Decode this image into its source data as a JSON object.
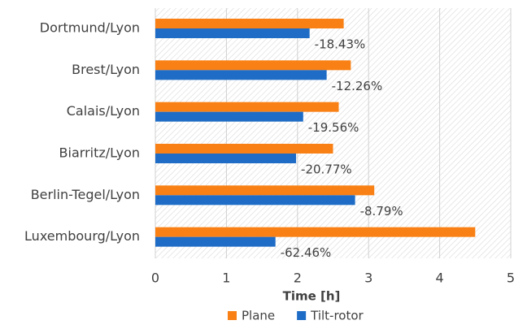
{
  "chart_data": {
    "type": "hbar",
    "categories": [
      "Dortmund/Lyon",
      "Brest/Lyon",
      "Calais/Lyon",
      "Biarritz/Lyon",
      "Berlin-Tegel/Lyon",
      "Luxembourg/Lyon"
    ],
    "series": [
      {
        "name": "Plane",
        "color": "#f98014",
        "values": [
          2.65,
          2.75,
          2.58,
          2.5,
          3.08,
          4.5
        ]
      },
      {
        "name": "Tilt-rotor",
        "color": "#1e6cc6",
        "values": [
          2.17,
          2.41,
          2.08,
          1.98,
          2.81,
          1.69
        ]
      }
    ],
    "change_labels": [
      "-18.43%",
      "-12.26%",
      "-19.56%",
      "-20.77%",
      "-8.79%",
      "-62.46%"
    ],
    "x_label": "Time [h]",
    "xlim": [
      0,
      5
    ],
    "xticks": [
      0,
      1,
      2,
      3,
      4,
      5
    ],
    "grid": true,
    "legend": "bottom"
  }
}
